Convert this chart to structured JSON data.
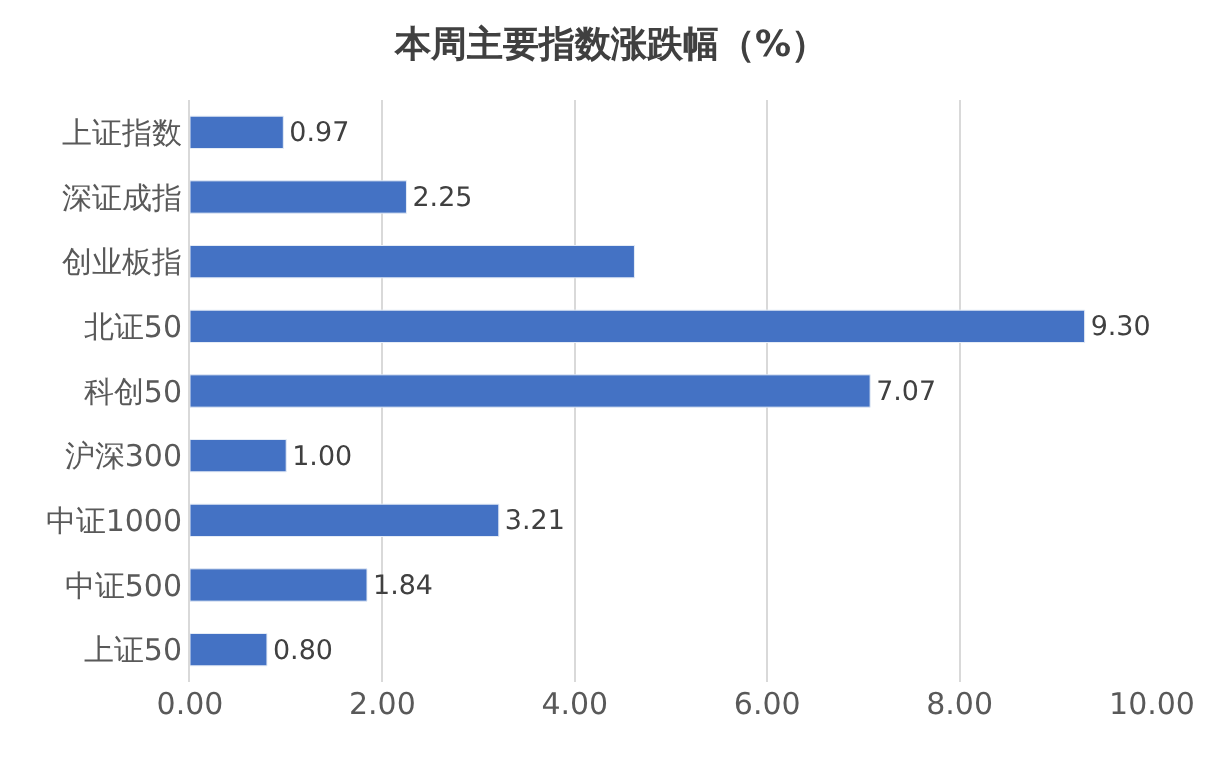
{
  "chart_data": {
    "type": "bar",
    "orientation": "horizontal",
    "title": "本周主要指数涨跌幅（%）",
    "categories": [
      "上证指数",
      "深证成指",
      "创业板指",
      "北证50",
      "科创50",
      "沪深300",
      "中证1000",
      "中证500",
      "上证50"
    ],
    "values": [
      0.97,
      2.25,
      4.62,
      9.3,
      7.07,
      1.0,
      3.21,
      1.84,
      0.8
    ],
    "value_labels": [
      "0.97",
      "2.25",
      null,
      "9.30",
      "7.07",
      "1.00",
      "3.21",
      "1.84",
      "0.80"
    ],
    "color": "#4472c4",
    "xlim": [
      0,
      10
    ],
    "xticks": [
      {
        "value": 0,
        "label": "0.00"
      },
      {
        "value": 2,
        "label": "2.00"
      },
      {
        "value": 4,
        "label": "4.00"
      },
      {
        "value": 6,
        "label": "6.00"
      },
      {
        "value": 8,
        "label": "8.00"
      },
      {
        "value": 10,
        "label": "10.00"
      }
    ],
    "grid": "x",
    "legend": false
  }
}
